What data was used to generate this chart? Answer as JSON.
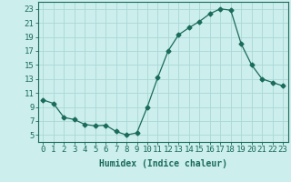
{
  "x": [
    0,
    1,
    2,
    3,
    4,
    5,
    6,
    7,
    8,
    9,
    10,
    11,
    12,
    13,
    14,
    15,
    16,
    17,
    18,
    19,
    20,
    21,
    22,
    23
  ],
  "y": [
    10,
    9.5,
    7.5,
    7.2,
    6.5,
    6.3,
    6.4,
    5.5,
    5.0,
    5.3,
    9.0,
    13.2,
    17.0,
    19.3,
    20.3,
    21.2,
    22.3,
    23.0,
    22.8,
    18.0,
    15.0,
    13.0,
    12.5,
    12.0
  ],
  "line_color": "#1a6b5a",
  "marker": "D",
  "marker_size": 2.5,
  "bg_color": "#cceeed",
  "grid_color": "#aad8d5",
  "xlabel": "Humidex (Indice chaleur)",
  "xlabel_fontsize": 7,
  "tick_fontsize": 6.5,
  "ylim": [
    4,
    24
  ],
  "xlim": [
    -0.5,
    23.5
  ],
  "yticks": [
    5,
    7,
    9,
    11,
    13,
    15,
    17,
    19,
    21,
    23
  ],
  "xticks": [
    0,
    1,
    2,
    3,
    4,
    5,
    6,
    7,
    8,
    9,
    10,
    11,
    12,
    13,
    14,
    15,
    16,
    17,
    18,
    19,
    20,
    21,
    22,
    23
  ]
}
